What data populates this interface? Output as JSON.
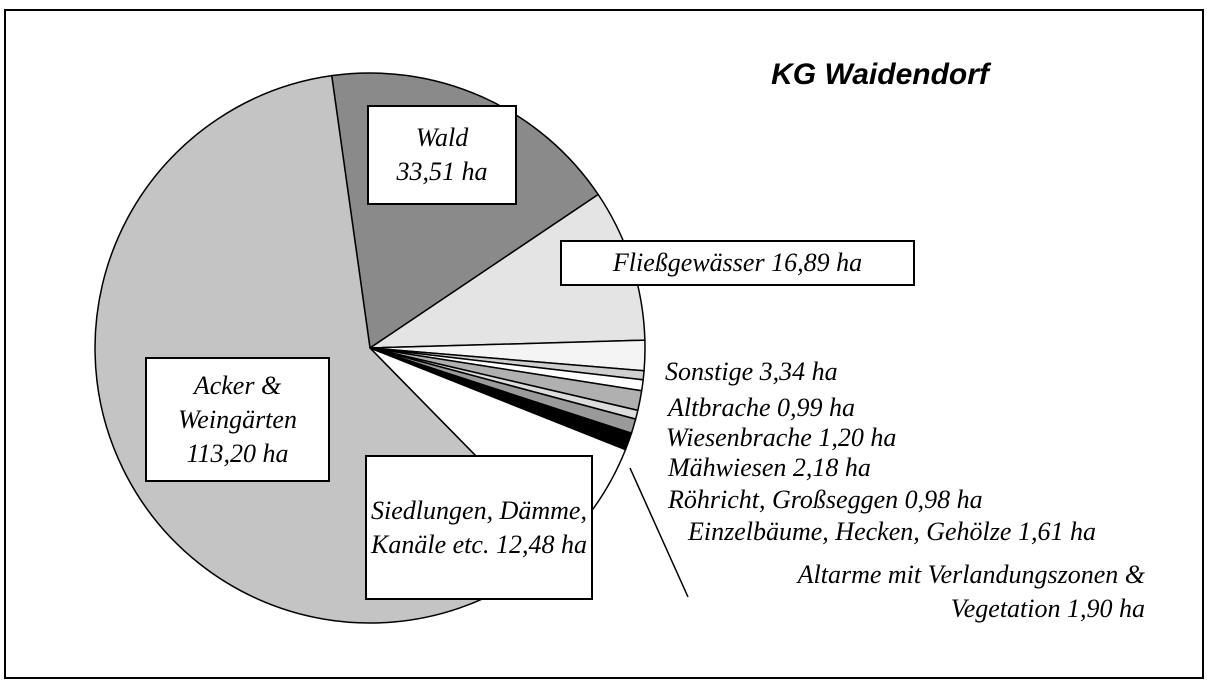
{
  "chart_data": {
    "type": "pie",
    "title": "KG Waidendorf",
    "categories": [
      "Wald",
      "Fließgewässer",
      "Sonstige",
      "Altbrache",
      "Wiesenbrache",
      "Mähwiesen",
      "Röhricht, Großseggen",
      "Einzelbäume, Hecken, Gehölze",
      "Altarme mit Verlandungszonen & Vegetation",
      "Siedlungen, Dämme, Kanäle etc.",
      "Acker & Weingärten"
    ],
    "values": [
      33.51,
      16.89,
      3.34,
      0.99,
      1.2,
      2.18,
      0.98,
      1.61,
      1.9,
      12.48,
      113.2
    ],
    "value_labels": [
      "33,51 ha",
      "16,89 ha",
      "3,34 ha",
      "0,99 ha",
      "1,20 ha",
      "2,18 ha",
      "0,98 ha",
      "1,61 ha",
      "1,90 ha",
      "12,48 ha",
      "113,20 ha"
    ],
    "colors": [
      "#8a8a8a",
      "#e4e4e4",
      "#f4f4f4",
      "#cfcfcf",
      "#ffffff",
      "#b0b0b0",
      "#dcdcdc",
      "#9a9a9a",
      "#000000",
      "#ffffff",
      "#c4c4c4"
    ]
  }
}
